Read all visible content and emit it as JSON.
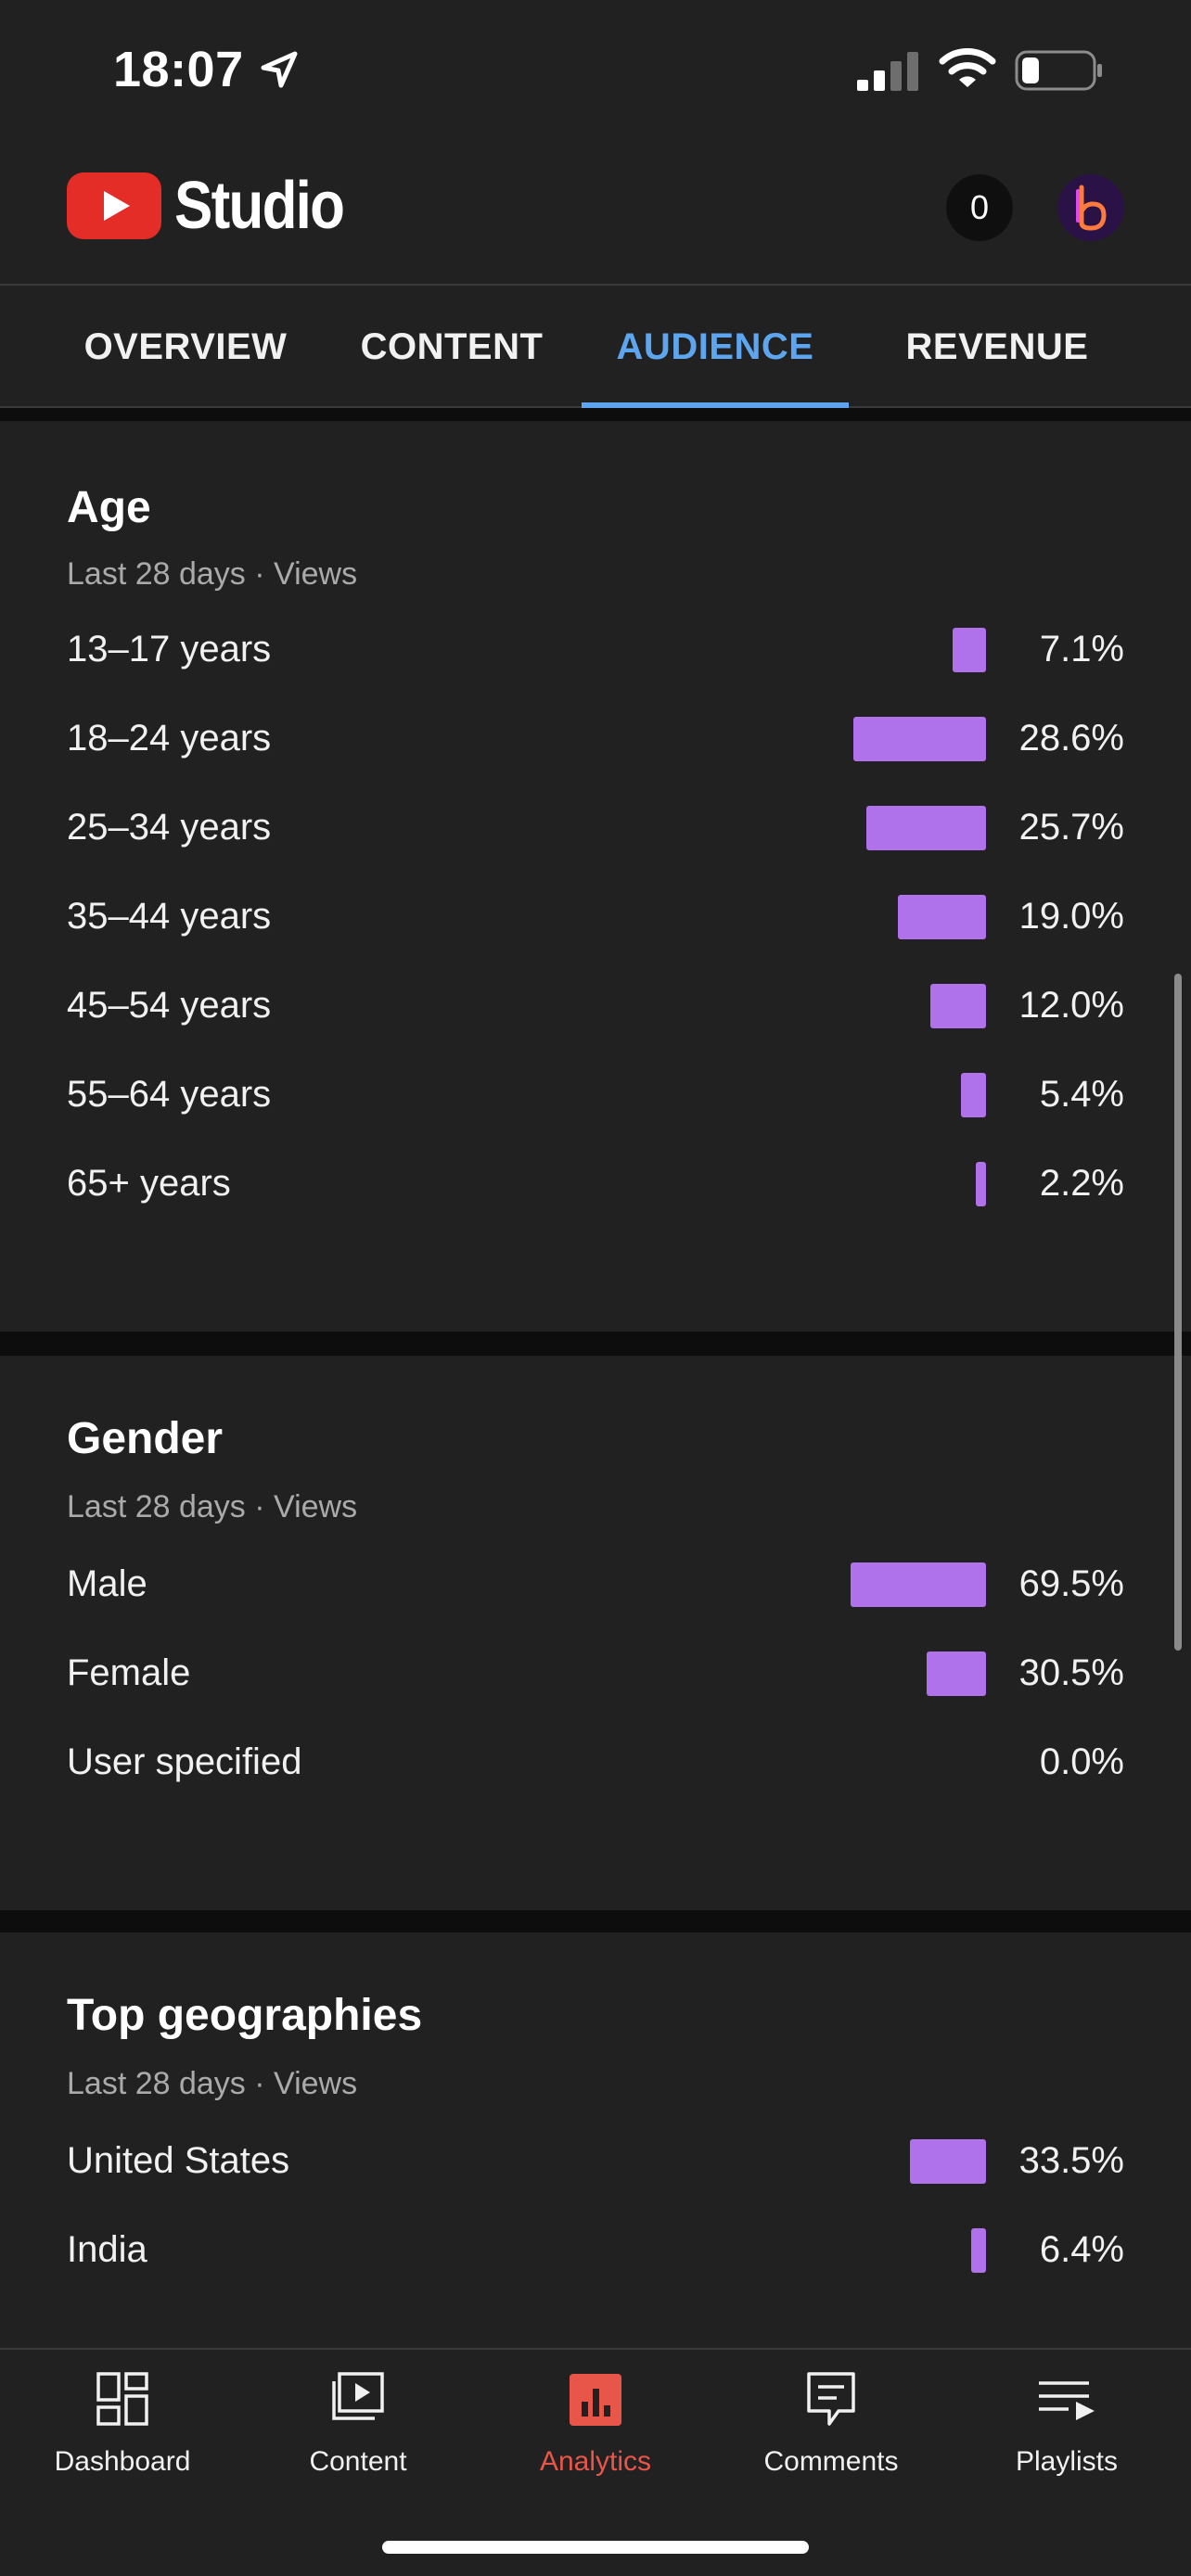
{
  "status_bar": {
    "time": "18:07",
    "location_icon": "location-arrow-icon",
    "signal_icon": "cellular-signal-icon",
    "wifi_icon": "wifi-icon",
    "battery_icon": "battery-icon"
  },
  "header": {
    "logo_text": "Studio",
    "notifications_count": "0"
  },
  "tabs": [
    {
      "label": "OVERVIEW",
      "active": false
    },
    {
      "label": "CONTENT",
      "active": false
    },
    {
      "label": "AUDIENCE",
      "active": true
    },
    {
      "label": "REVENUE",
      "active": false
    }
  ],
  "age": {
    "title": "Age",
    "subtitle": "Last 28 days · Views",
    "rows": [
      {
        "label": "13–17 years",
        "value": "7.1%",
        "percent": 7.1
      },
      {
        "label": "18–24 years",
        "value": "28.6%",
        "percent": 28.6
      },
      {
        "label": "25–34 years",
        "value": "25.7%",
        "percent": 25.7
      },
      {
        "label": "35–44 years",
        "value": "19.0%",
        "percent": 19.0
      },
      {
        "label": "45–54 years",
        "value": "12.0%",
        "percent": 12.0
      },
      {
        "label": "55–64 years",
        "value": "5.4%",
        "percent": 5.4
      },
      {
        "label": "65+ years",
        "value": "2.2%",
        "percent": 2.2
      }
    ]
  },
  "gender": {
    "title": "Gender",
    "subtitle": "Last 28 days · Views",
    "rows": [
      {
        "label": "Male",
        "value": "69.5%",
        "percent": 69.5
      },
      {
        "label": "Female",
        "value": "30.5%",
        "percent": 30.5
      },
      {
        "label": "User specified",
        "value": "0.0%",
        "percent": 0.0
      }
    ]
  },
  "geographies": {
    "title": "Top geographies",
    "subtitle": "Last 28 days · Views",
    "rows": [
      {
        "label": "United States",
        "value": "33.5%",
        "percent": 33.5
      },
      {
        "label": "India",
        "value": "6.4%",
        "percent": 6.4
      }
    ]
  },
  "bottom_nav": [
    {
      "label": "Dashboard",
      "icon": "dashboard-icon",
      "active": false
    },
    {
      "label": "Content",
      "icon": "content-icon",
      "active": false
    },
    {
      "label": "Analytics",
      "icon": "analytics-icon",
      "active": true
    },
    {
      "label": "Comments",
      "icon": "comments-icon",
      "active": false
    },
    {
      "label": "Playlists",
      "icon": "playlists-icon",
      "active": false
    }
  ],
  "colors": {
    "background": "#212121",
    "bar": "#b072ea",
    "tab_active": "#5ea5f0",
    "nav_active": "#e8564a",
    "logo_red": "#e52d27"
  }
}
